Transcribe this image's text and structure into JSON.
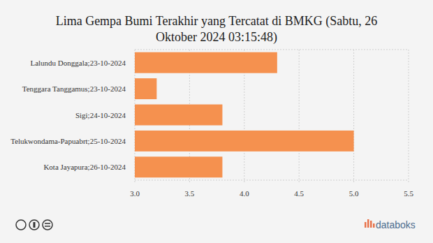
{
  "chart_data": {
    "type": "bar",
    "orientation": "horizontal",
    "title": "Lima Gempa Bumi Terakhir yang Tercatat di BMKG (Sabtu, 26 Oktober 2024 03:15:48)",
    "categories": [
      "Lalundu Donggala;23-10-2024",
      "Tenggara Tanggamus;23-10-2024",
      "Sigi;24-10-2024",
      "Telukwondama-Papuabrt;25-10-2024",
      "Kota Jayapura;26-10-2024"
    ],
    "values": [
      4.3,
      3.2,
      3.8,
      5.0,
      3.8
    ],
    "color": "#f5914f",
    "xlim": [
      3,
      5.5
    ],
    "xticks": [
      {
        "value": 3,
        "label": "3.0"
      },
      3.5,
      {
        "value": 4,
        "label": "4.0"
      },
      4.5,
      {
        "value": 5,
        "label": "5.0"
      },
      5.5
    ],
    "grid": true,
    "source": "databoks"
  }
}
